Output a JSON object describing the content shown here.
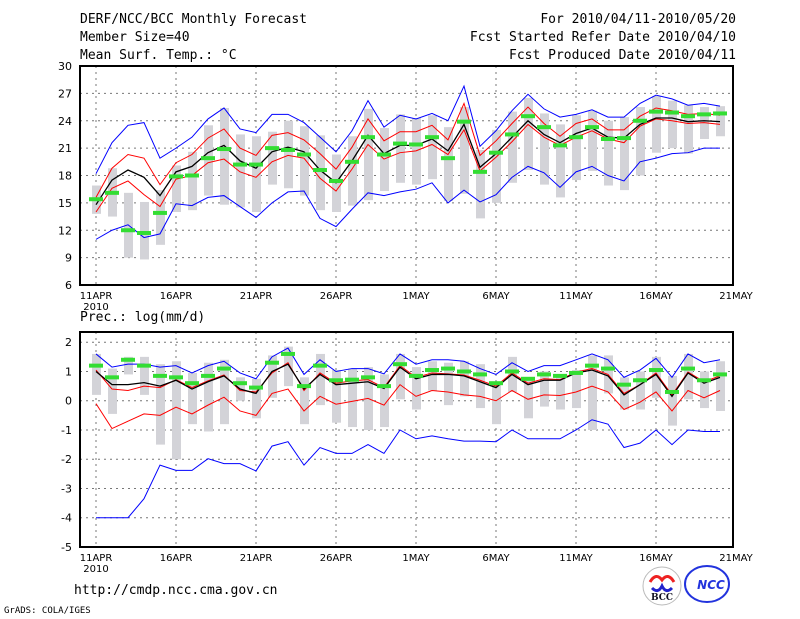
{
  "header": {
    "title": "DERF/NCC/BCC Monthly Forecast",
    "member_size": "Member Size=40",
    "variable": "Mean Surf. Temp.: °C",
    "period": "For 2010/04/11-2010/05/20",
    "started": "Fcst Started Refer Date 2010/04/10",
    "produced": "Fcst Produced Date 2010/04/11"
  },
  "footer": {
    "url": "http://cmdp.ncc.cma.gov.cn",
    "credit": "GrADS: COLA/IGES",
    "logos": [
      "BCC",
      "NCC"
    ]
  },
  "colors": {
    "mean": "#000000",
    "spread": "#ff0000",
    "extreme": "#0000ff",
    "obs": "#33dd33",
    "box": "#d3d3d8"
  },
  "chart_data": [
    {
      "type": "line",
      "title": "Mean Surf. Temp.: °C",
      "ylabel": "°C",
      "ylim": [
        6,
        30
      ],
      "yticks": [
        6,
        9,
        12,
        15,
        18,
        21,
        24,
        27,
        30
      ],
      "xlim": [
        0,
        40
      ],
      "xticks": [
        {
          "day": 0,
          "label": "11APR",
          "sub": "2010"
        },
        {
          "day": 5,
          "label": "16APR"
        },
        {
          "day": 10,
          "label": "21APR"
        },
        {
          "day": 15,
          "label": "26APR"
        },
        {
          "day": 20,
          "label": "1MAY"
        },
        {
          "day": 25,
          "label": "6MAY"
        },
        {
          "day": 30,
          "label": "11MAY"
        },
        {
          "day": 35,
          "label": "16MAY"
        },
        {
          "day": 40,
          "label": "21MAY"
        }
      ],
      "grid": true,
      "series": {
        "mean": [
          14.8,
          17.5,
          18.6,
          17.8,
          15.8,
          18.4,
          19.0,
          20.5,
          21.3,
          19.6,
          18.8,
          20.6,
          21.1,
          20.6,
          18.6,
          17.2,
          19.6,
          22.4,
          20.4,
          21.3,
          21.3,
          22.0,
          20.7,
          23.6,
          18.9,
          20.4,
          22.2,
          24.0,
          22.5,
          21.6,
          22.6,
          23.2,
          22.2,
          22.1,
          23.6,
          24.3,
          24.3,
          23.9,
          24.0,
          23.9
        ],
        "upper": [
          15.6,
          18.8,
          20.3,
          19.9,
          17.0,
          19.4,
          20.3,
          22.1,
          23.1,
          21.0,
          20.2,
          22.4,
          22.7,
          21.9,
          20.4,
          18.7,
          21.1,
          24.2,
          21.8,
          22.8,
          22.8,
          23.5,
          21.9,
          25.9,
          20.2,
          21.8,
          23.7,
          25.5,
          23.7,
          22.3,
          23.7,
          24.2,
          23.0,
          23.0,
          24.5,
          25.4,
          25.1,
          24.7,
          24.8,
          24.6
        ],
        "lower": [
          14.0,
          16.6,
          17.4,
          15.9,
          14.6,
          17.6,
          18.0,
          19.4,
          19.8,
          18.4,
          17.8,
          19.5,
          20.2,
          19.9,
          17.7,
          16.3,
          18.7,
          21.4,
          19.8,
          20.5,
          20.7,
          21.4,
          20.3,
          23.0,
          18.5,
          20.0,
          21.7,
          23.6,
          22.2,
          21.3,
          22.2,
          22.9,
          22.0,
          21.6,
          23.4,
          24.2,
          24.0,
          23.7,
          23.8,
          23.6
        ],
        "max": [
          18.2,
          21.6,
          23.5,
          23.8,
          19.9,
          21.0,
          22.2,
          24.2,
          25.4,
          23.1,
          22.7,
          24.7,
          24.7,
          23.8,
          22.2,
          20.6,
          22.9,
          26.2,
          23.3,
          24.6,
          24.2,
          24.8,
          24.0,
          27.8,
          21.2,
          22.9,
          25.1,
          26.9,
          25.3,
          24.4,
          24.7,
          25.2,
          24.4,
          24.4,
          25.9,
          26.8,
          26.4,
          25.7,
          25.9,
          25.6
        ],
        "min": [
          11.0,
          12.0,
          12.6,
          11.2,
          11.6,
          14.9,
          14.7,
          15.6,
          15.8,
          14.6,
          13.4,
          15.0,
          16.2,
          16.3,
          13.3,
          12.4,
          14.3,
          16.1,
          15.8,
          16.2,
          16.5,
          17.2,
          15.0,
          16.4,
          15.1,
          15.9,
          17.8,
          19.0,
          18.3,
          16.7,
          18.4,
          19.0,
          18.0,
          17.4,
          19.5,
          19.9,
          20.4,
          20.5,
          21.0,
          21.0
        ],
        "obs": [
          15.4,
          16.1,
          12.0,
          11.7,
          13.9,
          17.9,
          18.0,
          19.9,
          20.9,
          19.2,
          19.2,
          21.0,
          20.8,
          20.3,
          18.6,
          17.4,
          19.5,
          22.2,
          20.3,
          21.5,
          21.4,
          22.2,
          19.9,
          23.9,
          18.4,
          20.5,
          22.5,
          24.5,
          23.3,
          21.3,
          22.2,
          23.3,
          22.0,
          22.1,
          24.0,
          25.0,
          24.9,
          24.5,
          24.7,
          24.8
        ],
        "box_low": [
          13.8,
          13.5,
          9.0,
          8.8,
          10.4,
          14.0,
          14.2,
          15.8,
          14.8,
          14.5,
          14.0,
          17.0,
          16.6,
          15.8,
          14.2,
          14.0,
          14.7,
          15.3,
          16.3,
          17.2,
          17.0,
          17.6,
          15.2,
          16.0,
          13.3,
          15.0,
          17.2,
          18.6,
          17.0,
          15.6,
          17.5,
          18.5,
          16.9,
          16.4,
          18.0,
          20.5,
          21.0,
          20.4,
          22.0,
          22.3
        ],
        "box_high": [
          16.9,
          18.8,
          16.1,
          15.1,
          16.4,
          19.1,
          20.6,
          23.5,
          25.4,
          22.5,
          22.3,
          22.8,
          24.0,
          23.4,
          22.4,
          20.3,
          22.3,
          25.3,
          23.2,
          24.7,
          24.3,
          24.6,
          23.3,
          25.5,
          20.8,
          23.0,
          25.0,
          26.5,
          24.8,
          23.6,
          24.6,
          25.1,
          24.0,
          24.4,
          25.5,
          26.7,
          26.2,
          25.7,
          25.5,
          25.6
        ]
      }
    },
    {
      "type": "line",
      "title": "Prec.: log(mm/d)",
      "ylabel": "log(mm/d)",
      "ylim": [
        -5,
        2.35
      ],
      "yticks": [
        -5,
        -4,
        -3,
        -2,
        -1,
        0,
        1,
        2
      ],
      "xlim": [
        0,
        40
      ],
      "xticks": [
        {
          "day": 0,
          "label": "11APR",
          "sub": "2010"
        },
        {
          "day": 5,
          "label": "16APR"
        },
        {
          "day": 10,
          "label": "21APR"
        },
        {
          "day": 15,
          "label": "26APR"
        },
        {
          "day": 20,
          "label": "1MAY"
        },
        {
          "day": 25,
          "label": "6MAY"
        },
        {
          "day": 30,
          "label": "11MAY"
        },
        {
          "day": 35,
          "label": "16MAY"
        },
        {
          "day": 40,
          "label": "21MAY"
        }
      ],
      "grid": true,
      "series": {
        "mean": [
          1.0,
          0.55,
          0.55,
          0.62,
          0.5,
          0.7,
          0.4,
          0.65,
          0.85,
          0.4,
          0.25,
          1.0,
          1.25,
          0.4,
          0.9,
          0.55,
          0.6,
          0.65,
          0.42,
          1.15,
          0.75,
          0.9,
          0.9,
          0.85,
          0.65,
          0.45,
          0.9,
          0.55,
          0.7,
          0.7,
          0.95,
          1.05,
          0.85,
          0.2,
          0.55,
          0.9,
          0.15,
          0.95,
          0.6,
          0.8
        ],
        "upper": [
          1.05,
          0.4,
          0.35,
          0.5,
          0.45,
          0.72,
          0.45,
          0.68,
          0.88,
          0.35,
          0.3,
          0.95,
          1.3,
          0.35,
          0.95,
          0.6,
          0.68,
          0.72,
          0.45,
          1.2,
          0.8,
          0.95,
          0.92,
          0.88,
          0.7,
          0.5,
          0.95,
          0.6,
          0.75,
          0.72,
          0.98,
          1.1,
          0.9,
          0.25,
          0.55,
          0.95,
          0.2,
          0.98,
          0.65,
          0.85
        ],
        "lower": [
          -0.1,
          -0.95,
          -0.7,
          -0.45,
          -0.5,
          -0.22,
          -0.45,
          -0.15,
          0.12,
          -0.35,
          -0.5,
          0.25,
          0.4,
          -0.35,
          0.15,
          -0.12,
          -0.02,
          0.08,
          -0.15,
          0.55,
          0.15,
          0.35,
          0.3,
          0.2,
          0.15,
          0.0,
          0.35,
          0.05,
          0.2,
          0.18,
          0.3,
          0.5,
          0.3,
          -0.3,
          -0.05,
          0.3,
          -0.35,
          0.35,
          0.1,
          0.35
        ],
        "max": [
          1.6,
          1.15,
          1.25,
          1.25,
          1.15,
          1.2,
          0.95,
          1.2,
          1.35,
          0.95,
          0.75,
          1.5,
          1.8,
          0.9,
          1.4,
          1.0,
          1.1,
          1.1,
          0.92,
          1.6,
          1.25,
          1.4,
          1.4,
          1.35,
          1.1,
          0.9,
          1.3,
          1.0,
          1.2,
          1.2,
          1.4,
          1.6,
          1.4,
          0.8,
          1.05,
          1.45,
          0.8,
          1.6,
          1.3,
          1.4
        ],
        "min": [
          -4.0,
          -4.0,
          -4.0,
          -3.35,
          -2.2,
          -2.38,
          -2.38,
          -1.98,
          -2.15,
          -2.15,
          -2.4,
          -1.55,
          -1.4,
          -2.2,
          -1.6,
          -1.8,
          -1.8,
          -1.5,
          -1.8,
          -1.0,
          -1.3,
          -1.2,
          -1.3,
          -1.38,
          -1.38,
          -1.4,
          -1.0,
          -1.3,
          -1.3,
          -1.3,
          -1.0,
          -0.65,
          -0.8,
          -1.6,
          -1.45,
          -1.0,
          -1.5,
          -1.0,
          -1.05,
          -1.05
        ],
        "obs": [
          1.2,
          0.8,
          1.4,
          1.2,
          0.85,
          0.8,
          0.6,
          0.85,
          1.1,
          0.6,
          0.45,
          1.3,
          1.6,
          0.5,
          1.2,
          0.7,
          0.72,
          0.8,
          0.5,
          1.25,
          0.85,
          1.05,
          1.1,
          1.0,
          0.9,
          0.6,
          1.0,
          0.75,
          0.9,
          0.85,
          0.95,
          1.2,
          1.1,
          0.55,
          0.7,
          1.05,
          0.3,
          1.1,
          0.7,
          0.9
        ],
        "box_low": [
          0.2,
          -0.45,
          0.9,
          0.2,
          -1.5,
          -2.0,
          -0.8,
          -1.05,
          -0.8,
          0.0,
          -0.6,
          0.1,
          0.5,
          -0.8,
          -0.15,
          -0.75,
          -0.9,
          -1.0,
          -0.9,
          0.05,
          -0.3,
          0.35,
          -0.15,
          0.15,
          -0.25,
          -0.8,
          0.3,
          -0.6,
          -0.2,
          -0.3,
          -0.25,
          -1.0,
          0.25,
          -0.3,
          -0.3,
          0.1,
          -0.85,
          0.05,
          -0.25,
          -0.35
        ],
        "box_high": [
          1.6,
          1.1,
          1.5,
          1.5,
          1.25,
          1.35,
          0.95,
          1.3,
          1.4,
          0.8,
          0.75,
          1.55,
          1.85,
          0.8,
          1.6,
          1.05,
          1.1,
          1.15,
          0.9,
          1.6,
          1.15,
          1.35,
          1.3,
          1.35,
          1.25,
          0.6,
          1.5,
          0.8,
          1.0,
          0.9,
          1.05,
          1.55,
          1.55,
          0.8,
          1.0,
          1.5,
          0.85,
          1.6,
          1.0,
          1.35
        ]
      }
    }
  ]
}
